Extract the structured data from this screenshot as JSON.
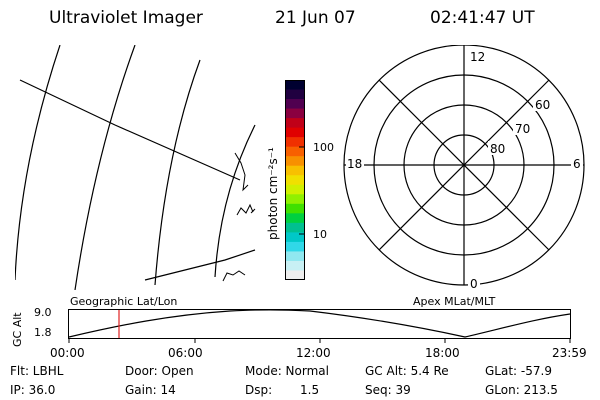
{
  "header": {
    "title": "Ultraviolet Imager",
    "date": "21 Jun 07",
    "time": "02:41:47 UT"
  },
  "colorbar": {
    "unit_label": "photon cm⁻²s⁻¹",
    "tick_100": "100",
    "tick_10": "10",
    "colors": [
      "#000030",
      "#200040",
      "#500050",
      "#8a0040",
      "#c00018",
      "#e00000",
      "#f03000",
      "#f86000",
      "#f89000",
      "#f8c000",
      "#f0e000",
      "#d0f000",
      "#90f000",
      "#40e000",
      "#00d040",
      "#00c090",
      "#00c8c8",
      "#30d8e8",
      "#90e8f0",
      "#c8f0f4",
      "#eeeeee"
    ]
  },
  "polar": {
    "label_12": "12",
    "label_0": "0",
    "label_18": "18",
    "label_6": "6",
    "label_60": "60",
    "label_70": "70",
    "label_80": "80"
  },
  "altitude_plot": {
    "ylabel": "GC Alt",
    "ytick_top": "9.0",
    "ytick_bottom": "1.8",
    "left_label": "Geographic Lat/Lon",
    "right_label": "Apex MLat/MLT",
    "xticks": [
      "00:00",
      "06:00",
      "12:00",
      "18:00",
      "23:59"
    ],
    "marker_color": "#e02020"
  },
  "info": {
    "flt": "Flt: LBHL",
    "ip": "IP: 36.0",
    "door": "Door: Open",
    "gain": "Gain: 14",
    "mode": "Mode: Normal",
    "dsp_label": "Dsp:",
    "dsp_value": "1.5",
    "gc_alt": "GC Alt: 5.4 Re",
    "seq": "Seq: 39",
    "glat": "GLat: -57.9",
    "glon": "GLon: 213.5"
  }
}
